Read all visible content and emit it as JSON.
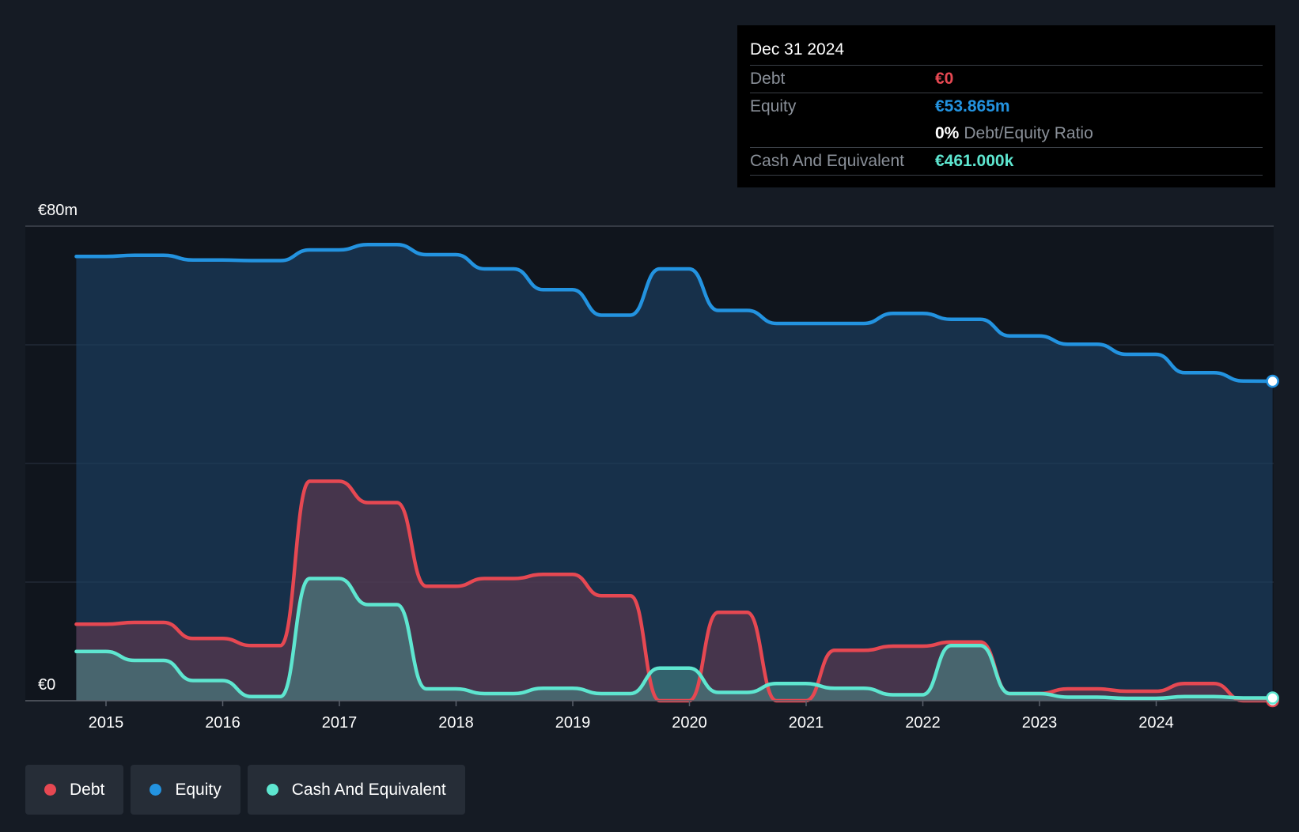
{
  "tooltip": {
    "date": "Dec 31 2024",
    "rows": [
      {
        "label": "Debt",
        "value": "€0",
        "color": "#e64852"
      },
      {
        "label": "Equity",
        "value": "€53.865m",
        "color": "#2393e0"
      },
      {
        "ratio_value": "0%",
        "ratio_label": "Debt/Equity Ratio"
      },
      {
        "label": "Cash And Equivalent",
        "value": "€461.000k",
        "color": "#5ee6d0"
      }
    ]
  },
  "legend": [
    {
      "label": "Debt",
      "color": "#e64852"
    },
    {
      "label": "Equity",
      "color": "#2393e0"
    },
    {
      "label": "Cash And Equivalent",
      "color": "#5ee6d0"
    }
  ],
  "chart_data": {
    "type": "area",
    "ylim": [
      0,
      80
    ],
    "y_tick_labels": [
      {
        "value": 80,
        "label": "€80m"
      },
      {
        "value": 0,
        "label": "€0"
      }
    ],
    "x_tick_labels": [
      "2015",
      "2016",
      "2017",
      "2018",
      "2019",
      "2020",
      "2021",
      "2022",
      "2023",
      "2024"
    ],
    "grid": true,
    "legend_position": "bottom-left",
    "highlight_date": "Dec 31 2024",
    "series": [
      {
        "name": "Equity",
        "color": "#2393e0",
        "values": [
          [
            "2014-09-30",
            74.9
          ],
          [
            "2014-12-31",
            74.9
          ],
          [
            "2015-03-31",
            75.1
          ],
          [
            "2015-06-30",
            75.1
          ],
          [
            "2015-09-30",
            74.3
          ],
          [
            "2015-12-31",
            74.3
          ],
          [
            "2016-03-31",
            74.2
          ],
          [
            "2016-06-30",
            74.2
          ],
          [
            "2016-09-30",
            76.0
          ],
          [
            "2016-12-31",
            76.0
          ],
          [
            "2017-03-31",
            76.9
          ],
          [
            "2017-06-30",
            76.9
          ],
          [
            "2017-09-30",
            75.2
          ],
          [
            "2017-12-31",
            75.2
          ],
          [
            "2018-03-31",
            72.8
          ],
          [
            "2018-06-30",
            72.8
          ],
          [
            "2018-09-30",
            69.3
          ],
          [
            "2018-12-31",
            69.3
          ],
          [
            "2019-03-31",
            65.0
          ],
          [
            "2019-06-30",
            65.0
          ],
          [
            "2019-09-30",
            72.8
          ],
          [
            "2019-12-31",
            72.8
          ],
          [
            "2020-03-31",
            65.8
          ],
          [
            "2020-06-30",
            65.8
          ],
          [
            "2020-09-30",
            63.6
          ],
          [
            "2020-12-31",
            63.6
          ],
          [
            "2021-03-31",
            63.6
          ],
          [
            "2021-06-30",
            63.6
          ],
          [
            "2021-09-30",
            65.3
          ],
          [
            "2021-12-31",
            65.3
          ],
          [
            "2022-03-31",
            64.3
          ],
          [
            "2022-06-30",
            64.3
          ],
          [
            "2022-09-30",
            61.5
          ],
          [
            "2022-12-31",
            61.5
          ],
          [
            "2023-03-31",
            60.1
          ],
          [
            "2023-06-30",
            60.1
          ],
          [
            "2023-09-30",
            58.4
          ],
          [
            "2023-12-31",
            58.4
          ],
          [
            "2024-03-31",
            55.3
          ],
          [
            "2024-06-30",
            55.3
          ],
          [
            "2024-09-30",
            53.9
          ],
          [
            "2024-12-31",
            53.865
          ]
        ]
      },
      {
        "name": "Debt",
        "color": "#e64852",
        "values": [
          [
            "2014-09-30",
            12.9
          ],
          [
            "2014-12-31",
            12.9
          ],
          [
            "2015-03-31",
            13.2
          ],
          [
            "2015-06-30",
            13.2
          ],
          [
            "2015-09-30",
            10.5
          ],
          [
            "2015-12-31",
            10.5
          ],
          [
            "2016-03-31",
            9.3
          ],
          [
            "2016-06-30",
            9.3
          ],
          [
            "2016-09-30",
            37.0
          ],
          [
            "2016-12-31",
            37.0
          ],
          [
            "2017-03-31",
            33.4
          ],
          [
            "2017-06-30",
            33.4
          ],
          [
            "2017-09-30",
            19.3
          ],
          [
            "2017-12-31",
            19.3
          ],
          [
            "2018-03-31",
            20.6
          ],
          [
            "2018-06-30",
            20.6
          ],
          [
            "2018-09-30",
            21.3
          ],
          [
            "2018-12-31",
            21.3
          ],
          [
            "2019-03-31",
            17.7
          ],
          [
            "2019-06-30",
            17.7
          ],
          [
            "2019-09-30",
            0.0
          ],
          [
            "2019-12-31",
            0.0
          ],
          [
            "2020-03-31",
            14.9
          ],
          [
            "2020-06-30",
            14.9
          ],
          [
            "2020-09-30",
            0.0
          ],
          [
            "2020-12-31",
            0.0
          ],
          [
            "2021-03-31",
            8.5
          ],
          [
            "2021-06-30",
            8.5
          ],
          [
            "2021-09-30",
            9.2
          ],
          [
            "2021-12-31",
            9.2
          ],
          [
            "2022-03-31",
            9.9
          ],
          [
            "2022-06-30",
            9.9
          ],
          [
            "2022-09-30",
            1.2
          ],
          [
            "2022-12-31",
            1.2
          ],
          [
            "2023-03-31",
            2.0
          ],
          [
            "2023-06-30",
            2.0
          ],
          [
            "2023-09-30",
            1.6
          ],
          [
            "2023-12-31",
            1.6
          ],
          [
            "2024-03-31",
            2.9
          ],
          [
            "2024-06-30",
            2.9
          ],
          [
            "2024-09-30",
            0.0
          ],
          [
            "2024-12-31",
            0.0
          ]
        ]
      },
      {
        "name": "Cash And Equivalent",
        "color": "#5ee6d0",
        "values": [
          [
            "2014-09-30",
            8.3
          ],
          [
            "2014-12-31",
            8.3
          ],
          [
            "2015-03-31",
            6.8
          ],
          [
            "2015-06-30",
            6.8
          ],
          [
            "2015-09-30",
            3.4
          ],
          [
            "2015-12-31",
            3.4
          ],
          [
            "2016-03-31",
            0.7
          ],
          [
            "2016-06-30",
            0.7
          ],
          [
            "2016-09-30",
            20.6
          ],
          [
            "2016-12-31",
            20.6
          ],
          [
            "2017-03-31",
            16.2
          ],
          [
            "2017-06-30",
            16.2
          ],
          [
            "2017-09-30",
            2.0
          ],
          [
            "2017-12-31",
            2.0
          ],
          [
            "2018-03-31",
            1.2
          ],
          [
            "2018-06-30",
            1.2
          ],
          [
            "2018-09-30",
            2.1
          ],
          [
            "2018-12-31",
            2.1
          ],
          [
            "2019-03-31",
            1.2
          ],
          [
            "2019-06-30",
            1.2
          ],
          [
            "2019-09-30",
            5.5
          ],
          [
            "2019-12-31",
            5.5
          ],
          [
            "2020-03-31",
            1.4
          ],
          [
            "2020-06-30",
            1.4
          ],
          [
            "2020-09-30",
            2.9
          ],
          [
            "2020-12-31",
            2.9
          ],
          [
            "2021-03-31",
            2.1
          ],
          [
            "2021-06-30",
            2.1
          ],
          [
            "2021-09-30",
            1.0
          ],
          [
            "2021-12-31",
            1.0
          ],
          [
            "2022-03-31",
            9.3
          ],
          [
            "2022-06-30",
            9.3
          ],
          [
            "2022-09-30",
            1.2
          ],
          [
            "2022-12-31",
            1.2
          ],
          [
            "2023-03-31",
            0.6
          ],
          [
            "2023-06-30",
            0.6
          ],
          [
            "2023-09-30",
            0.4
          ],
          [
            "2023-12-31",
            0.4
          ],
          [
            "2024-03-31",
            0.7
          ],
          [
            "2024-06-30",
            0.7
          ],
          [
            "2024-09-30",
            0.46
          ],
          [
            "2024-12-31",
            0.461
          ]
        ]
      }
    ]
  }
}
